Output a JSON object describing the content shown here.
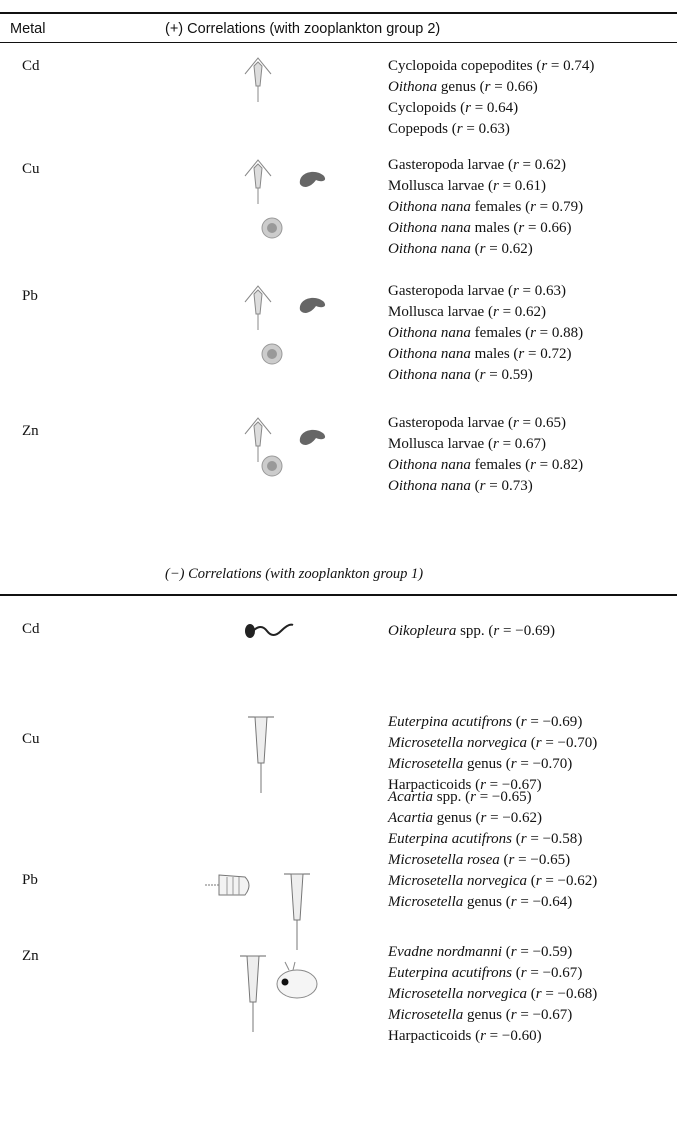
{
  "table": {
    "header": {
      "metal": "Metal",
      "positive": "(+) Correlations (with zooplankton group 2)"
    },
    "stat": {
      "open": "(",
      "symbol": "r",
      "eq": " = ",
      "close": ")"
    },
    "positive_rows": [
      {
        "metal": "Cd",
        "entries": [
          {
            "taxon": "Cyclopoida copepodites",
            "r": 0.74
          },
          {
            "taxon": "Oithona",
            "italic": true,
            "qualifier": "genus",
            "r": 0.66
          },
          {
            "taxon": "Cyclopoids",
            "r": 0.64
          },
          {
            "taxon": "Copepods",
            "r": 0.63
          }
        ]
      },
      {
        "metal": "Cu",
        "entries": [
          {
            "taxon": "Gasteropoda larvae",
            "r": 0.62
          },
          {
            "taxon": "Mollusca larvae",
            "r": 0.61
          },
          {
            "taxon": "Oithona nana",
            "italic": true,
            "qualifier": "females",
            "r": 0.79
          },
          {
            "taxon": "Oithona nana",
            "italic": true,
            "qualifier": "males",
            "r": 0.66
          },
          {
            "taxon": "Oithona nana",
            "italic": true,
            "r": 0.62
          }
        ]
      },
      {
        "metal": "Pb",
        "entries": [
          {
            "taxon": "Gasteropoda larvae",
            "r": 0.63
          },
          {
            "taxon": "Mollusca larvae",
            "r": 0.62
          },
          {
            "taxon": "Oithona nana",
            "italic": true,
            "qualifier": "females",
            "r": 0.88
          },
          {
            "taxon": "Oithona nana",
            "italic": true,
            "qualifier": "males",
            "r": 0.72
          },
          {
            "taxon": "Oithona nana",
            "italic": true,
            "r": 0.59
          }
        ]
      },
      {
        "metal": "Zn",
        "entries": [
          {
            "taxon": "Gasteropoda larvae",
            "r": 0.65
          },
          {
            "taxon": "Mollusca larvae",
            "r": 0.67
          },
          {
            "taxon": "Oithona nana",
            "italic": true,
            "qualifier": "females",
            "r": 0.82
          },
          {
            "taxon": "Oithona nana",
            "italic": true,
            "r": 0.73
          }
        ]
      }
    ],
    "negative_header": "(−) Correlations (with zooplankton group 1)",
    "negative_rows": [
      {
        "metal": "Cd",
        "entries": [
          {
            "taxon": "Oikopleura",
            "italic": true,
            "qualifier": "spp.",
            "r": -0.69,
            "r_label": "−0.69"
          }
        ]
      },
      {
        "metal": "Cu",
        "entries": [
          {
            "taxon": "Euterpina acutifrons",
            "italic": true,
            "r": -0.69,
            "r_label": "−0.69"
          },
          {
            "taxon": "Microsetella norvegica",
            "italic": true,
            "r": -0.7,
            "r_label": "−0.70"
          },
          {
            "taxon": "Microsetella",
            "italic": true,
            "qualifier": "genus",
            "r": -0.7,
            "r_label": "−0.70"
          },
          {
            "taxon": "Harpacticoids",
            "r": -0.67,
            "r_label": "−0.67"
          }
        ]
      },
      {
        "metal": "Pb",
        "entries": [
          {
            "taxon": "Acartia",
            "italic": true,
            "qualifier": "spp.",
            "r": -0.65,
            "r_label": "−0.65"
          },
          {
            "taxon": "Acartia",
            "italic": true,
            "qualifier": "genus",
            "r": -0.62,
            "r_label": "−0.62"
          },
          {
            "taxon": "Euterpina acutifrons",
            "italic": true,
            "r": -0.58,
            "r_label": "−0.58"
          },
          {
            "taxon": "Microsetella rosea",
            "italic": true,
            "r": -0.65,
            "r_label": "−0.65"
          },
          {
            "taxon": "Microsetella norvegica",
            "italic": true,
            "r": -0.62,
            "r_label": "−0.62"
          },
          {
            "taxon": "Microsetella",
            "italic": true,
            "qualifier": "genus",
            "r": -0.64,
            "r_label": "−0.64"
          }
        ]
      },
      {
        "metal": "Zn",
        "entries": [
          {
            "taxon": "Evadne nordmanni",
            "italic": true,
            "r": -0.59,
            "r_label": "−0.59"
          },
          {
            "taxon": "Euterpina acutifrons",
            "italic": true,
            "r": -0.67,
            "r_label": "−0.67"
          },
          {
            "taxon": "Microsetella norvegica",
            "italic": true,
            "r": -0.68,
            "r_label": "−0.68"
          },
          {
            "taxon": "Microsetella",
            "italic": true,
            "qualifier": "genus",
            "r": -0.67,
            "r_label": "−0.67"
          },
          {
            "taxon": "Harpacticoids",
            "r": -0.6,
            "r_label": "−0.60"
          }
        ]
      }
    ]
  }
}
